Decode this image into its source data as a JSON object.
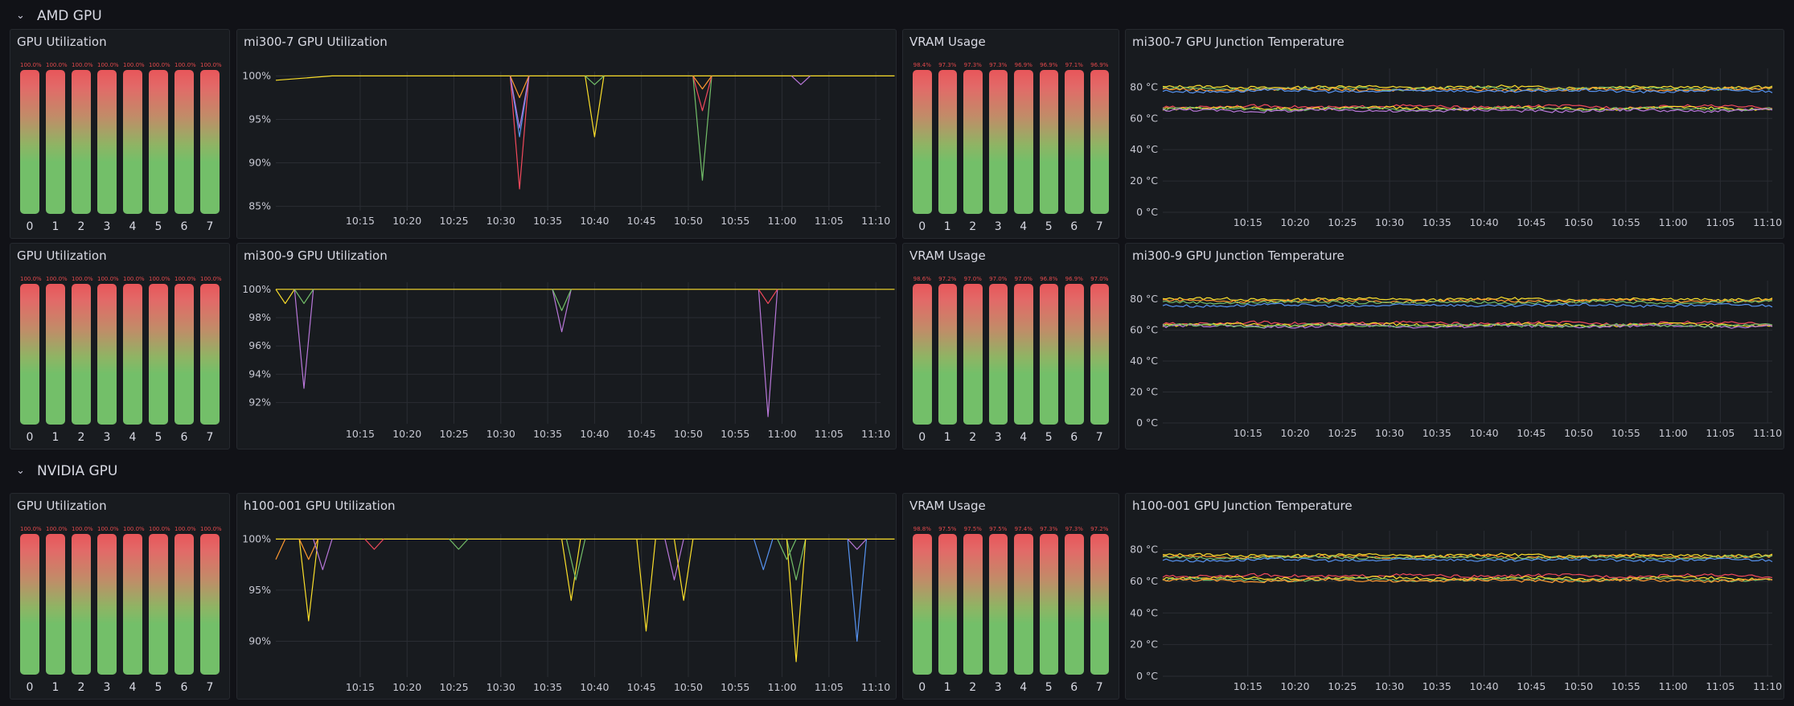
{
  "sections": [
    {
      "title": "AMD GPU"
    },
    {
      "title": "NVIDIA GPU"
    }
  ],
  "rows": [
    {
      "gpu_util": {
        "title": "GPU Utilization",
        "labels": [
          "0",
          "1",
          "2",
          "3",
          "4",
          "5",
          "6",
          "7"
        ],
        "values": [
          "100.0%",
          "100.0%",
          "100.0%",
          "100.0%",
          "100.0%",
          "100.0%",
          "100.0%",
          "100.0%"
        ]
      },
      "util_chart": {
        "title": "mi300-7 GPU Utilization"
      },
      "vram": {
        "title": "VRAM Usage",
        "labels": [
          "0",
          "1",
          "2",
          "3",
          "4",
          "5",
          "6",
          "7"
        ],
        "values": [
          "98.4%",
          "97.3%",
          "97.3%",
          "97.3%",
          "96.9%",
          "96.9%",
          "97.1%",
          "96.9%"
        ]
      },
      "temp_chart": {
        "title": "mi300-7 GPU Junction Temperature"
      }
    },
    {
      "gpu_util": {
        "title": "GPU Utilization",
        "labels": [
          "0",
          "1",
          "2",
          "3",
          "4",
          "5",
          "6",
          "7"
        ],
        "values": [
          "100.0%",
          "100.0%",
          "100.0%",
          "100.0%",
          "100.0%",
          "100.0%",
          "100.0%",
          "100.0%"
        ]
      },
      "util_chart": {
        "title": "mi300-9 GPU Utilization"
      },
      "vram": {
        "title": "VRAM Usage",
        "labels": [
          "0",
          "1",
          "2",
          "3",
          "4",
          "5",
          "6",
          "7"
        ],
        "values": [
          "98.6%",
          "97.2%",
          "97.0%",
          "97.0%",
          "97.0%",
          "96.8%",
          "96.9%",
          "97.0%"
        ]
      },
      "temp_chart": {
        "title": "mi300-9 GPU Junction Temperature"
      }
    },
    {
      "gpu_util": {
        "title": "GPU Utilization",
        "labels": [
          "0",
          "1",
          "2",
          "3",
          "4",
          "5",
          "6",
          "7"
        ],
        "values": [
          "100.0%",
          "100.0%",
          "100.0%",
          "100.0%",
          "100.0%",
          "100.0%",
          "100.0%",
          "100.0%"
        ]
      },
      "util_chart": {
        "title": "h100-001 GPU Utilization"
      },
      "vram": {
        "title": "VRAM Usage",
        "labels": [
          "0",
          "1",
          "2",
          "3",
          "4",
          "5",
          "6",
          "7"
        ],
        "values": [
          "98.8%",
          "97.5%",
          "97.5%",
          "97.5%",
          "97.4%",
          "97.3%",
          "97.3%",
          "97.2%"
        ]
      },
      "temp_chart": {
        "title": "h100-001 GPU Junction Temperature"
      }
    }
  ],
  "colors": {
    "yellow": "#fade2a",
    "orange": "#ff9830",
    "red": "#f2495c",
    "green": "#73bf69",
    "blue": "#5794f2",
    "purple": "#b877d9",
    "teal": "#8ab8ff"
  },
  "chart_data": [
    {
      "type": "line",
      "title": "mi300-7 GPU Utilization",
      "x_ticks": [
        "10:15",
        "10:20",
        "10:25",
        "10:30",
        "10:35",
        "10:40",
        "10:45",
        "10:50",
        "10:55",
        "11:00",
        "11:05",
        "11:10"
      ],
      "y_ticks": [
        "85%",
        "90%",
        "95%",
        "100%"
      ],
      "ylim": [
        84.5,
        100.5
      ],
      "series": [
        {
          "color": "#fade2a",
          "points": [
            [
              10.1,
              99.5
            ],
            [
              10.2,
              100
            ],
            [
              10.55,
              100
            ],
            [
              10.65,
              100
            ],
            [
              10.75,
              100
            ],
            [
              11.2,
              100
            ]
          ]
        },
        {
          "color": "#f2495c",
          "points": [
            [
              10.5167,
              100
            ],
            [
              10.5333,
              87
            ],
            [
              10.55,
              100
            ]
          ]
        },
        {
          "color": "#5794f2",
          "points": [
            [
              10.5167,
              100
            ],
            [
              10.5333,
              93
            ],
            [
              10.55,
              100
            ]
          ]
        },
        {
          "color": "#b877d9",
          "points": [
            [
              10.5167,
              100
            ],
            [
              10.5333,
              94
            ],
            [
              10.55,
              100
            ]
          ]
        },
        {
          "color": "#ff9830",
          "points": [
            [
              10.5167,
              100
            ],
            [
              10.5333,
              97.5
            ],
            [
              10.55,
              100
            ]
          ]
        },
        {
          "color": "#fade2a",
          "points": [
            [
              10.65,
              100
            ],
            [
              10.6667,
              93
            ],
            [
              10.6833,
              100
            ]
          ]
        },
        {
          "color": "#73bf69",
          "points": [
            [
              10.65,
              100
            ],
            [
              10.6667,
              99
            ],
            [
              10.6833,
              100
            ]
          ]
        },
        {
          "color": "#73bf69",
          "points": [
            [
              10.8417,
              100
            ],
            [
              10.8583,
              88
            ],
            [
              10.875,
              100
            ]
          ]
        },
        {
          "color": "#f2495c",
          "points": [
            [
              10.8417,
              100
            ],
            [
              10.8583,
              96
            ],
            [
              10.875,
              100
            ]
          ]
        },
        {
          "color": "#ff9830",
          "points": [
            [
              10.8417,
              100
            ],
            [
              10.8583,
              98.5
            ],
            [
              10.875,
              100
            ]
          ]
        },
        {
          "color": "#b877d9",
          "points": [
            [
              11.0167,
              100
            ],
            [
              11.0333,
              99
            ],
            [
              11.05,
              100
            ]
          ]
        }
      ]
    },
    {
      "type": "line",
      "title": "mi300-9 GPU Utilization",
      "x_ticks": [
        "10:15",
        "10:20",
        "10:25",
        "10:30",
        "10:35",
        "10:40",
        "10:45",
        "10:50",
        "10:55",
        "11:00",
        "11:05",
        "11:10"
      ],
      "y_ticks": [
        "92%",
        "94%",
        "96%",
        "98%",
        "100%"
      ],
      "ylim": [
        90.5,
        100.5
      ],
      "series": [
        {
          "color": "#fade2a",
          "points": [
            [
              10.1,
              100
            ],
            [
              11.2,
              100
            ]
          ]
        },
        {
          "color": "#fade2a",
          "points": [
            [
              10.1,
              100
            ],
            [
              10.1167,
              99
            ],
            [
              10.1333,
              100
            ]
          ]
        },
        {
          "color": "#b877d9",
          "points": [
            [
              10.1333,
              100
            ],
            [
              10.15,
              93
            ],
            [
              10.1667,
              100
            ]
          ]
        },
        {
          "color": "#73bf69",
          "points": [
            [
              10.1333,
              100
            ],
            [
              10.15,
              99
            ],
            [
              10.1667,
              100
            ]
          ]
        },
        {
          "color": "#b877d9",
          "points": [
            [
              10.5917,
              100
            ],
            [
              10.6083,
              97
            ],
            [
              10.625,
              100
            ]
          ]
        },
        {
          "color": "#73bf69",
          "points": [
            [
              10.5917,
              100
            ],
            [
              10.6083,
              98.5
            ],
            [
              10.625,
              100
            ]
          ]
        },
        {
          "color": "#b877d9",
          "points": [
            [
              10.9583,
              100
            ],
            [
              10.975,
              91
            ],
            [
              10.9917,
              100
            ]
          ]
        },
        {
          "color": "#f2495c",
          "points": [
            [
              10.9583,
              100
            ],
            [
              10.975,
              99
            ],
            [
              10.9917,
              100
            ]
          ]
        }
      ]
    },
    {
      "type": "line",
      "title": "h100-001 GPU Utilization",
      "x_ticks": [
        "10:15",
        "10:20",
        "10:25",
        "10:30",
        "10:35",
        "10:40",
        "10:45",
        "10:50",
        "10:55",
        "11:00",
        "11:05",
        "11:10"
      ],
      "y_ticks": [
        "90%",
        "95%",
        "100%"
      ],
      "ylim": [
        86.5,
        100.5
      ],
      "series": [
        {
          "color": "#fade2a",
          "points": [
            [
              10.1,
              100
            ],
            [
              11.2,
              100
            ]
          ]
        },
        {
          "color": "#ff9830",
          "points": [
            [
              10.1,
              98
            ],
            [
              10.1167,
              100
            ]
          ]
        },
        {
          "color": "#fade2a",
          "points": [
            [
              10.1417,
              100
            ],
            [
              10.1583,
              92
            ],
            [
              10.175,
              100
            ]
          ]
        },
        {
          "color": "#ff9830",
          "points": [
            [
              10.1417,
              100
            ],
            [
              10.1583,
              98
            ],
            [
              10.175,
              100
            ]
          ]
        },
        {
          "color": "#b877d9",
          "points": [
            [
              10.1667,
              100
            ],
            [
              10.1833,
              97
            ],
            [
              10.2,
              100
            ]
          ]
        },
        {
          "color": "#f2495c",
          "points": [
            [
              10.2583,
              100
            ],
            [
              10.275,
              99
            ],
            [
              10.2917,
              100
            ]
          ]
        },
        {
          "color": "#73bf69",
          "points": [
            [
              10.4083,
              100
            ],
            [
              10.425,
              99
            ],
            [
              10.4417,
              100
            ]
          ]
        },
        {
          "color": "#fade2a",
          "points": [
            [
              10.6083,
              100
            ],
            [
              10.625,
              94
            ],
            [
              10.6417,
              100
            ]
          ]
        },
        {
          "color": "#73bf69",
          "points": [
            [
              10.6167,
              100
            ],
            [
              10.6333,
              96
            ],
            [
              10.65,
              100
            ]
          ]
        },
        {
          "color": "#fade2a",
          "points": [
            [
              10.7417,
              100
            ],
            [
              10.7583,
              91
            ],
            [
              10.775,
              100
            ]
          ]
        },
        {
          "color": "#b877d9",
          "points": [
            [
              10.7917,
              100
            ],
            [
              10.8083,
              96
            ],
            [
              10.825,
              100
            ]
          ]
        },
        {
          "color": "#fade2a",
          "points": [
            [
              10.8083,
              100
            ],
            [
              10.825,
              94
            ],
            [
              10.8417,
              100
            ]
          ]
        },
        {
          "color": "#5794f2",
          "points": [
            [
              10.95,
              100
            ],
            [
              10.9667,
              97
            ],
            [
              10.9833,
              100
            ]
          ]
        },
        {
          "color": "#73bf69",
          "points": [
            [
              10.9917,
              100
            ],
            [
              11.0083,
              98
            ],
            [
              11.025,
              100
            ]
          ]
        },
        {
          "color": "#73bf69",
          "points": [
            [
              11.0083,
              100
            ],
            [
              11.025,
              96
            ],
            [
              11.0417,
              100
            ]
          ]
        },
        {
          "color": "#fade2a",
          "points": [
            [
              11.0083,
              100
            ],
            [
              11.025,
              88
            ],
            [
              11.0417,
              100
            ]
          ]
        },
        {
          "color": "#5794f2",
          "points": [
            [
              11.1167,
              100
            ],
            [
              11.1333,
              90
            ],
            [
              11.15,
              100
            ]
          ]
        },
        {
          "color": "#b877d9",
          "points": [
            [
              11.1167,
              100
            ],
            [
              11.1333,
              99
            ],
            [
              11.15,
              100
            ]
          ]
        }
      ]
    },
    {
      "type": "line",
      "title": "mi300-7 GPU Junction Temperature",
      "x_ticks": [
        "10:15",
        "10:20",
        "10:25",
        "10:30",
        "10:35",
        "10:40",
        "10:45",
        "10:50",
        "10:55",
        "11:00",
        "11:05",
        "11:10"
      ],
      "y_ticks": [
        "0 °C",
        "20 °C",
        "40 °C",
        "60 °C",
        "80 °C"
      ],
      "ylim": [
        0,
        92
      ],
      "series": [
        {
          "color": "#fade2a",
          "base": 80
        },
        {
          "color": "#73bf69",
          "base": 79
        },
        {
          "color": "#ff9830",
          "base": 78.5
        },
        {
          "color": "#5794f2",
          "base": 77.5
        },
        {
          "color": "#f2495c",
          "base": 67.5
        },
        {
          "color": "#fade2a",
          "base": 66.5
        },
        {
          "color": "#73bf69",
          "base": 66
        },
        {
          "color": "#b877d9",
          "base": 65
        }
      ]
    },
    {
      "type": "line",
      "title": "mi300-9 GPU Junction Temperature",
      "x_ticks": [
        "10:15",
        "10:20",
        "10:25",
        "10:30",
        "10:35",
        "10:40",
        "10:45",
        "10:50",
        "10:55",
        "11:00",
        "11:05",
        "11:10"
      ],
      "y_ticks": [
        "0 °C",
        "20 °C",
        "40 °C",
        "60 °C",
        "80 °C"
      ],
      "ylim": [
        0,
        92
      ],
      "series": [
        {
          "color": "#fade2a",
          "base": 80
        },
        {
          "color": "#ff9830",
          "base": 79
        },
        {
          "color": "#73bf69",
          "base": 78
        },
        {
          "color": "#5794f2",
          "base": 76
        },
        {
          "color": "#f2495c",
          "base": 64.5
        },
        {
          "color": "#fade2a",
          "base": 63.5
        },
        {
          "color": "#b877d9",
          "base": 62.5
        },
        {
          "color": "#73bf69",
          "base": 63
        }
      ]
    },
    {
      "type": "line",
      "title": "h100-001 GPU Junction Temperature",
      "x_ticks": [
        "10:15",
        "10:20",
        "10:25",
        "10:30",
        "10:35",
        "10:40",
        "10:45",
        "10:50",
        "10:55",
        "11:00",
        "11:05",
        "11:10"
      ],
      "y_ticks": [
        "0 °C",
        "20 °C",
        "40 °C",
        "60 °C",
        "80 °C"
      ],
      "ylim": [
        0,
        92
      ],
      "series": [
        {
          "color": "#fade2a",
          "base": 76.5
        },
        {
          "color": "#ff9830",
          "base": 75.5
        },
        {
          "color": "#73bf69",
          "base": 75
        },
        {
          "color": "#5794f2",
          "base": 73.5
        },
        {
          "color": "#f2495c",
          "base": 63.5
        },
        {
          "color": "#fade2a",
          "base": 62
        },
        {
          "color": "#73bf69",
          "base": 61
        },
        {
          "color": "#ff9830",
          "base": 60.5
        }
      ]
    }
  ]
}
